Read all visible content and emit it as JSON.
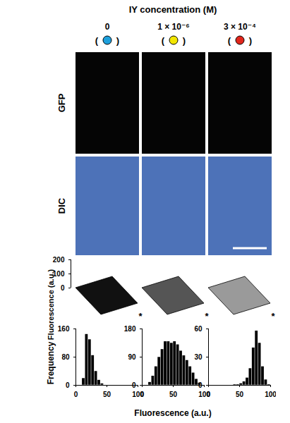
{
  "header": {
    "title": "IY concentration (M)"
  },
  "columns": [
    {
      "label": "0",
      "color": "#1ea0dc"
    },
    {
      "label": "1 × 10⁻⁶",
      "color": "#f2e600"
    },
    {
      "label": "3 × 10⁻⁴",
      "color": "#e1261c"
    }
  ],
  "marker_brackets": {
    "open": "(",
    "close": ")"
  },
  "image_rows": [
    "GFP",
    "DIC"
  ],
  "surface_plots": {
    "ylabel": "Fluorescence (a.u.)",
    "ylim": [
      0,
      200
    ],
    "yticks": [
      0,
      100,
      200
    ],
    "corner_mark": "*"
  },
  "chart_data": [
    {
      "type": "histogram",
      "ylabel": "Frequency",
      "color": "#000000",
      "bins": [
        0,
        5,
        10,
        15,
        20,
        25,
        30,
        35,
        40,
        45,
        50,
        55,
        60,
        65,
        70,
        75,
        80,
        85,
        90,
        95,
        100
      ],
      "counts": [
        0,
        0,
        20,
        145,
        130,
        85,
        40,
        15,
        5,
        0,
        0,
        0,
        0,
        0,
        0,
        0,
        0,
        0,
        0,
        0
      ],
      "xlim": [
        0,
        100
      ],
      "xticks": [
        0,
        50,
        100
      ],
      "ylim": [
        0,
        160
      ],
      "yticks": [
        0,
        80,
        160
      ]
    },
    {
      "type": "histogram",
      "xlabel": "Fluorescence (a.u.)",
      "color": "#000000",
      "bins": [
        0,
        5,
        10,
        15,
        20,
        25,
        30,
        35,
        40,
        45,
        50,
        55,
        60,
        65,
        70,
        75,
        80,
        85,
        90,
        95,
        100
      ],
      "counts": [
        0,
        0,
        10,
        30,
        60,
        90,
        115,
        140,
        140,
        135,
        140,
        130,
        110,
        95,
        80,
        60,
        40,
        20,
        8,
        0
      ],
      "xlim": [
        0,
        100
      ],
      "xticks": [
        0,
        50,
        100
      ],
      "ylim": [
        0,
        180
      ],
      "yticks": [
        0,
        90,
        180
      ]
    },
    {
      "type": "histogram",
      "color": "#000000",
      "bins": [
        0,
        5,
        10,
        15,
        20,
        25,
        30,
        35,
        40,
        45,
        50,
        55,
        60,
        65,
        70,
        75,
        80,
        85,
        90,
        95,
        100
      ],
      "counts": [
        0,
        0,
        0,
        0,
        0,
        0,
        0,
        0,
        1,
        1,
        2,
        4,
        8,
        18,
        40,
        58,
        45,
        20,
        6,
        1
      ],
      "xlim": [
        0,
        100
      ],
      "xticks": [
        0,
        50,
        100
      ],
      "ylim": [
        0,
        60
      ],
      "yticks": [
        0,
        30,
        60
      ]
    }
  ]
}
